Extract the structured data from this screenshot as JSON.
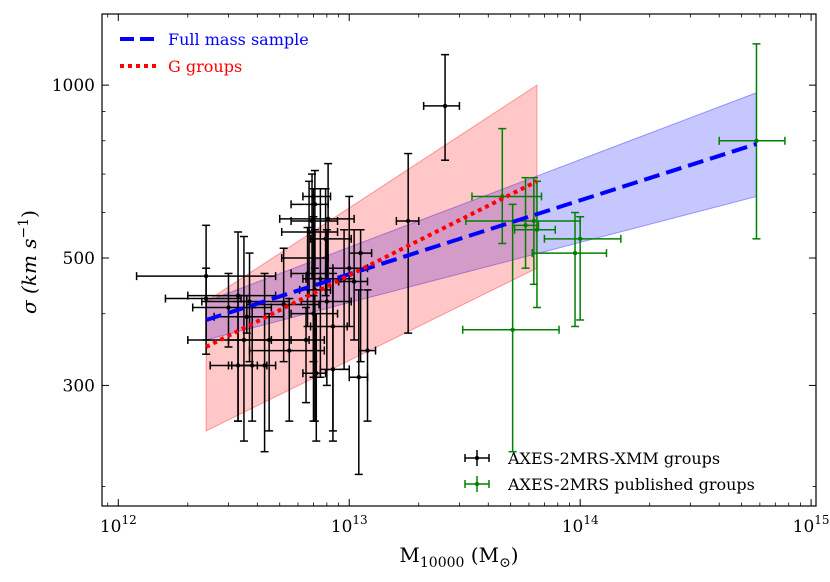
{
  "chart_data": {
    "type": "scatter",
    "title": "",
    "xlabel": "M",
    "xlabel_sub": "10000",
    "xlabel_units": "(M",
    "xlabel_units_sub": "⊙",
    "xlabel_units_close": ")",
    "ylabel": "σ (km s",
    "ylabel_sup": "−1",
    "ylabel_close": ")",
    "xscale": "log",
    "yscale": "log",
    "xlim": [
      850000000000.0,
      1050000000000000.0
    ],
    "ylim": [
      185,
      1330
    ],
    "x_ticks": [
      {
        "value": 1000000000000.0,
        "base": "10",
        "exp": "12"
      },
      {
        "value": 10000000000000.0,
        "base": "10",
        "exp": "13"
      },
      {
        "value": 100000000000000.0,
        "base": "10",
        "exp": "14"
      },
      {
        "value": 1000000000000000.0,
        "base": "10",
        "exp": "15"
      }
    ],
    "y_ticks": [
      {
        "value": 300,
        "label": "300"
      },
      {
        "value": 500,
        "label": "500"
      },
      {
        "value": 1000,
        "label": "1000"
      }
    ],
    "lines": [
      {
        "name": "Full mass sample",
        "color": "#0000ff",
        "style": "dashed",
        "x": [
          2400000000000.0,
          580000000000000.0
        ],
        "y": [
          390,
          790
        ],
        "band": {
          "color": "#0000ff",
          "x": [
            2400000000000.0,
            580000000000000.0
          ],
          "lower": [
            360,
            640
          ],
          "upper": [
            420,
            970
          ]
        }
      },
      {
        "name": "G groups",
        "color": "#ff0000",
        "style": "dotted",
        "x": [
          2400000000000.0,
          65000000000000.0
        ],
        "y": [
          350,
          680
        ],
        "band": {
          "color": "#ff0000",
          "x": [
            2400000000000.0,
            65000000000000.0
          ],
          "lower": [
            250,
            480
          ],
          "upper": [
            420,
            1000
          ]
        }
      }
    ],
    "series": [
      {
        "name": "AXES-2MRS-XMM groups",
        "color": "#000000",
        "points": [
          [
            2400000000000.0,
            465,
            1200000000000.0,
            4800000000000.0,
            340,
            570
          ],
          [
            2400000000000.0,
            425,
            1600000000000.0,
            3400000000000.0,
            360,
            480
          ],
          [
            3300000000000.0,
            430,
            2000000000000.0,
            4800000000000.0,
            260,
            555
          ],
          [
            3700000000000.0,
            420,
            2300000000000.0,
            5500000000000.0,
            330,
            510
          ],
          [
            3000000000000.0,
            410,
            2100000000000.0,
            4600000000000.0,
            350,
            470
          ],
          [
            3500000000000.0,
            360,
            2000000000000.0,
            5600000000000.0,
            240,
            545
          ],
          [
            3800000000000.0,
            325,
            3100000000000.0,
            4400000000000.0,
            260,
            410
          ],
          [
            3300000000000.0,
            325,
            2500000000000.0,
            4000000000000.0,
            260,
            420
          ],
          [
            4300000000000.0,
            325,
            3000000000000.0,
            4800000000000.0,
            230,
            470
          ],
          [
            3600000000000.0,
            395,
            2600000000000.0,
            5200000000000.0,
            370,
            430
          ],
          [
            4500000000000.0,
            360,
            3000000000000.0,
            6700000000000.0,
            250,
            400
          ],
          [
            5200000000000.0,
            415,
            3600000000000.0,
            7400000000000.0,
            330,
            520
          ],
          [
            5500000000000.0,
            345,
            3700000000000.0,
            7800000000000.0,
            260,
            425
          ],
          [
            6500000000000.0,
            360,
            4600000000000.0,
            7800000000000.0,
            280,
            410
          ],
          [
            6600000000000.0,
            470,
            5600000000000.0,
            7900000000000.0,
            380,
            565
          ],
          [
            6700000000000.0,
            555,
            5100000000000.0,
            8900000000000.0,
            430,
            680
          ],
          [
            6900000000000.0,
            580,
            5600000000000.0,
            8900000000000.0,
            460,
            700
          ],
          [
            7100000000000.0,
            620,
            5600000000000.0,
            8100000000000.0,
            480,
            710
          ],
          [
            7000000000000.0,
            640,
            6300000000000.0,
            8300000000000.0,
            330,
            660
          ],
          [
            7000000000000.0,
            500,
            5100000000000.0,
            8100000000000.0,
            310,
            590
          ],
          [
            7100000000000.0,
            440,
            6100000000000.0,
            8300000000000.0,
            260,
            560
          ],
          [
            7000000000000.0,
            400,
            5600000000000.0,
            8900000000000.0,
            260,
            430
          ],
          [
            7200000000000.0,
            315,
            6300000000000.0,
            7900000000000.0,
            240,
            400
          ],
          [
            7500000000000.0,
            460,
            6300000000000.0,
            9200000000000.0,
            310,
            660
          ],
          [
            7900000000000.0,
            540,
            6800000000000.0,
            10200000000000.0,
            430,
            660
          ],
          [
            8100000000000.0,
            585,
            5000000000000.0,
            10500000000000.0,
            460,
            730
          ],
          [
            8000000000000.0,
            420,
            6200000000000.0,
            10200000000000.0,
            300,
            560
          ],
          [
            8500000000000.0,
            380,
            6800000000000.0,
            9800000000000.0,
            250,
            480
          ],
          [
            9500000000000.0,
            460,
            6500000000000.0,
            10500000000000.0,
            320,
            560
          ],
          [
            8500000000000.0,
            320,
            7500000000000.0,
            10000000000000.0,
            240,
            470
          ],
          [
            10000000000000.0,
            480,
            8500000000000.0,
            12000000000000.0,
            380,
            640
          ],
          [
            10500000000000.0,
            455,
            9000000000000.0,
            12000000000000.0,
            360,
            560
          ],
          [
            11000000000000.0,
            310,
            10000000000000.0,
            12000000000000.0,
            210,
            440
          ],
          [
            11200000000000.0,
            510,
            10000000000000.0,
            12500000000000.0,
            330,
            560
          ],
          [
            12000000000000.0,
            345,
            11000000000000.0,
            13000000000000.0,
            260,
            440
          ],
          [
            18000000000000.0,
            580,
            16000000000000.0,
            20000000000000.0,
            370,
            760
          ],
          [
            26000000000000.0,
            920,
            21000000000000.0,
            30000000000000.0,
            740,
            1130
          ]
        ]
      },
      {
        "name": "AXES-2MRS published groups",
        "color": "#008000",
        "points": [
          [
            46000000000000.0,
            640,
            34000000000000.0,
            68000000000000.0,
            530,
            840
          ],
          [
            51000000000000.0,
            375,
            31000000000000.0,
            81000000000000.0,
            230,
            620
          ],
          [
            63000000000000.0,
            580,
            32000000000000.0,
            100000000000000.0,
            450,
            690
          ],
          [
            58000000000000.0,
            570,
            51000000000000.0,
            66000000000000.0,
            480,
            690
          ],
          [
            65000000000000.0,
            560,
            52000000000000.0,
            78000000000000.0,
            410,
            680
          ],
          [
            95000000000000.0,
            510,
            62000000000000.0,
            130000000000000.0,
            380,
            600
          ],
          [
            100000000000000.0,
            540,
            70000000000000.0,
            150000000000000.0,
            390,
            590
          ],
          [
            580000000000000.0,
            800,
            400000000000000.0,
            770000000000000.0,
            540,
            1180
          ]
        ]
      }
    ],
    "legends": {
      "lines_position": "top-left",
      "markers_position": "bottom-right",
      "lines": [
        {
          "label": "Full mass sample",
          "color": "#0000ff",
          "style": "dashed"
        },
        {
          "label": "G groups",
          "color": "#ff0000",
          "style": "dotted"
        }
      ],
      "markers": [
        {
          "label": "AXES-2MRS-XMM groups",
          "color": "#000000"
        },
        {
          "label": "AXES-2MRS published groups",
          "color": "#008000"
        }
      ]
    }
  }
}
